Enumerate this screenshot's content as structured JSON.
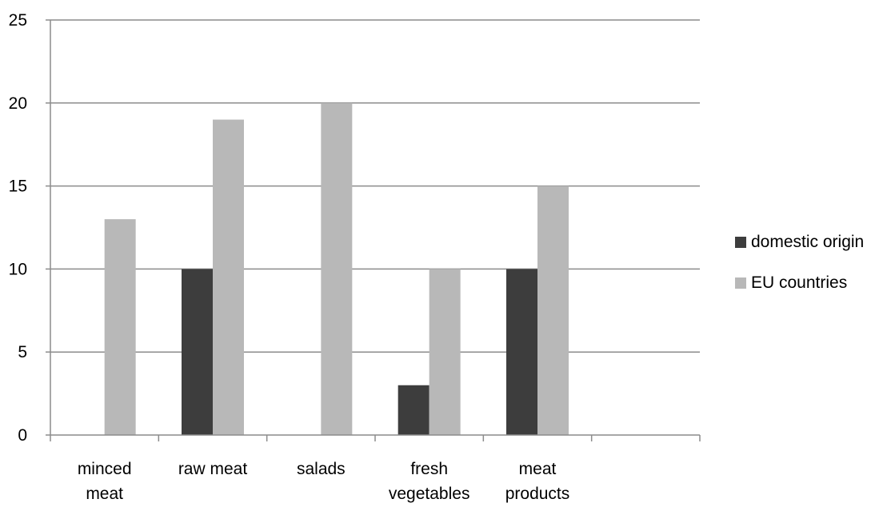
{
  "chart_data": {
    "type": "bar",
    "categories": [
      [
        "minced",
        "meat"
      ],
      [
        "raw meat"
      ],
      [
        "salads"
      ],
      [
        "fresh",
        "vegetables"
      ],
      [
        "meat",
        "products"
      ],
      [
        ""
      ]
    ],
    "series": [
      {
        "name": "domestic origin",
        "color": "#3d3d3d",
        "values": [
          0,
          10,
          0,
          3,
          10,
          0
        ]
      },
      {
        "name": "EU countries",
        "color": "#b8b8b8",
        "values": [
          13,
          19,
          20,
          10,
          15,
          0
        ]
      }
    ],
    "ylim": [
      0,
      25
    ],
    "yticks": [
      0,
      5,
      10,
      15,
      20,
      25
    ],
    "grid": true,
    "legend": "right",
    "title": "",
    "xlabel": "",
    "ylabel": ""
  }
}
